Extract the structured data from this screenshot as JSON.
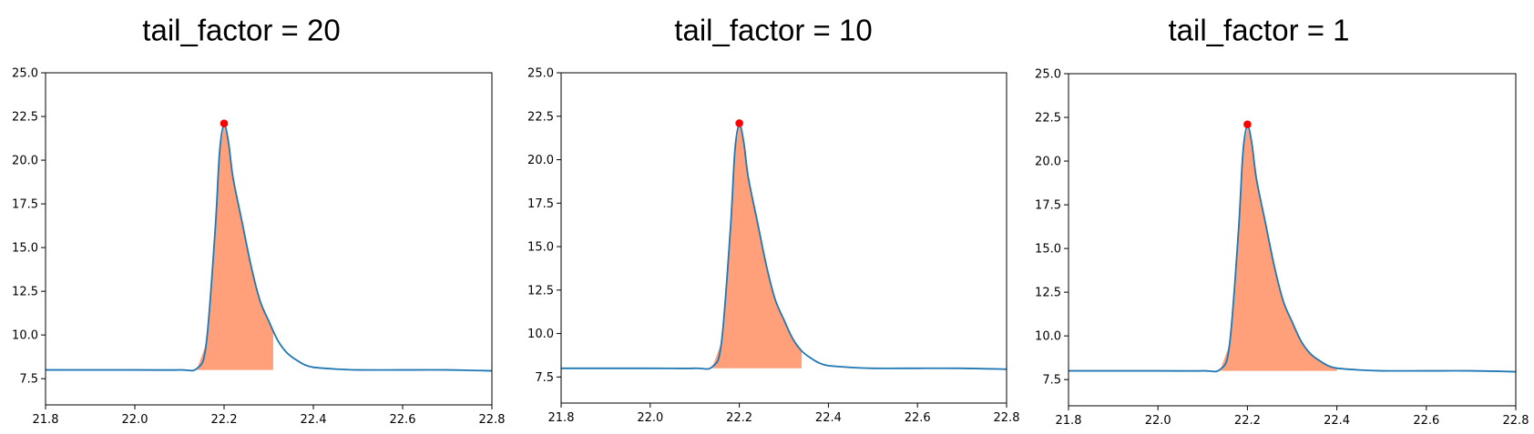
{
  "chart_data": [
    {
      "type": "line",
      "title": "tail_factor = 20",
      "xlim": [
        21.8,
        22.8
      ],
      "ylim": [
        6.0,
        25.0
      ],
      "xticks": [
        "21.8",
        "22.0",
        "22.2",
        "22.4",
        "22.6",
        "22.8"
      ],
      "yticks": [
        "7.5",
        "10.0",
        "12.5",
        "15.0",
        "17.5",
        "20.0",
        "22.5",
        "25.0"
      ],
      "series": [
        {
          "x": [
            21.8,
            22.0,
            22.1,
            22.14,
            22.16,
            22.18,
            22.19,
            22.2,
            22.21,
            22.22,
            22.24,
            22.26,
            22.28,
            22.3,
            22.32,
            22.34,
            22.36,
            22.38,
            22.4,
            22.45,
            22.5,
            22.6,
            22.7,
            22.8
          ],
          "y": [
            8.0,
            8.0,
            8.0,
            8.1,
            9.5,
            16.0,
            20.5,
            22.0,
            21.0,
            19.0,
            16.5,
            14.0,
            12.0,
            10.8,
            9.7,
            9.0,
            8.6,
            8.3,
            8.15,
            8.05,
            8.0,
            8.0,
            8.0,
            7.95
          ],
          "color": "#1f77b4"
        }
      ],
      "peak": {
        "x": 22.2,
        "y": 22.1,
        "color": "#ff0000"
      },
      "fill": {
        "x_start": 22.14,
        "x_end": 22.31,
        "baseline": 8.0,
        "color": "#ffa07a"
      }
    },
    {
      "type": "line",
      "title": "tail_factor = 10",
      "xlim": [
        21.8,
        22.8
      ],
      "ylim": [
        6.0,
        25.0
      ],
      "xticks": [
        "21.8",
        "22.0",
        "22.2",
        "22.4",
        "22.6",
        "22.8"
      ],
      "yticks": [
        "7.5",
        "10.0",
        "12.5",
        "15.0",
        "17.5",
        "20.0",
        "22.5",
        "25.0"
      ],
      "series": [
        {
          "x": [
            21.8,
            22.0,
            22.1,
            22.14,
            22.16,
            22.18,
            22.19,
            22.2,
            22.21,
            22.22,
            22.24,
            22.26,
            22.28,
            22.3,
            22.32,
            22.34,
            22.36,
            22.38,
            22.4,
            22.45,
            22.5,
            22.6,
            22.7,
            22.8
          ],
          "y": [
            8.0,
            8.0,
            8.0,
            8.1,
            9.5,
            16.0,
            20.5,
            22.0,
            21.0,
            19.0,
            16.5,
            14.0,
            12.0,
            10.8,
            9.7,
            9.0,
            8.6,
            8.3,
            8.15,
            8.05,
            8.0,
            8.0,
            8.0,
            7.95
          ],
          "color": "#1f77b4"
        }
      ],
      "peak": {
        "x": 22.2,
        "y": 22.1,
        "color": "#ff0000"
      },
      "fill": {
        "x_start": 22.14,
        "x_end": 22.34,
        "baseline": 8.0,
        "color": "#ffa07a"
      }
    },
    {
      "type": "line",
      "title": "tail_factor = 1",
      "xlim": [
        21.8,
        22.8
      ],
      "ylim": [
        6.0,
        25.0
      ],
      "xticks": [
        "21.8",
        "22.0",
        "22.2",
        "22.4",
        "22.6",
        "22.8"
      ],
      "yticks": [
        "7.5",
        "10.0",
        "12.5",
        "15.0",
        "17.5",
        "20.0",
        "22.5",
        "25.0"
      ],
      "series": [
        {
          "x": [
            21.8,
            22.0,
            22.1,
            22.14,
            22.16,
            22.18,
            22.19,
            22.2,
            22.21,
            22.22,
            22.24,
            22.26,
            22.28,
            22.3,
            22.32,
            22.34,
            22.36,
            22.38,
            22.4,
            22.45,
            22.5,
            22.6,
            22.7,
            22.8
          ],
          "y": [
            8.0,
            8.0,
            8.0,
            8.1,
            9.5,
            16.0,
            20.5,
            22.0,
            21.0,
            19.0,
            16.5,
            14.0,
            12.0,
            10.8,
            9.7,
            9.0,
            8.6,
            8.3,
            8.15,
            8.05,
            8.0,
            8.0,
            8.0,
            7.95
          ],
          "color": "#1f77b4"
        }
      ],
      "peak": {
        "x": 22.2,
        "y": 22.1,
        "color": "#ff0000"
      },
      "fill": {
        "x_start": 22.14,
        "x_end": 22.4,
        "baseline": 8.0,
        "color": "#ffa07a"
      }
    }
  ]
}
